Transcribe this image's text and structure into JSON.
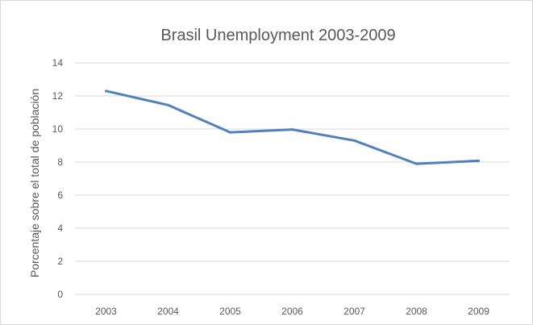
{
  "chart_data": {
    "type": "line",
    "title": "Brasil Unemployment 2003-2009",
    "xlabel": "",
    "ylabel": "Porcentaje sobre el total de población",
    "categories": [
      "2003",
      "2004",
      "2005",
      "2006",
      "2007",
      "2008",
      "2009"
    ],
    "series": [
      {
        "values": [
          12.3,
          11.45,
          9.8,
          9.97,
          9.3,
          7.9,
          8.08
        ]
      }
    ],
    "ylim": [
      0,
      14
    ],
    "yticks": [
      "0",
      "2",
      "4",
      "6",
      "8",
      "10",
      "12",
      "14"
    ],
    "grid": true,
    "legend": "none",
    "colors": {
      "line": "#4f81bd",
      "grid": "#d9d9d9",
      "text": "#595959"
    }
  }
}
